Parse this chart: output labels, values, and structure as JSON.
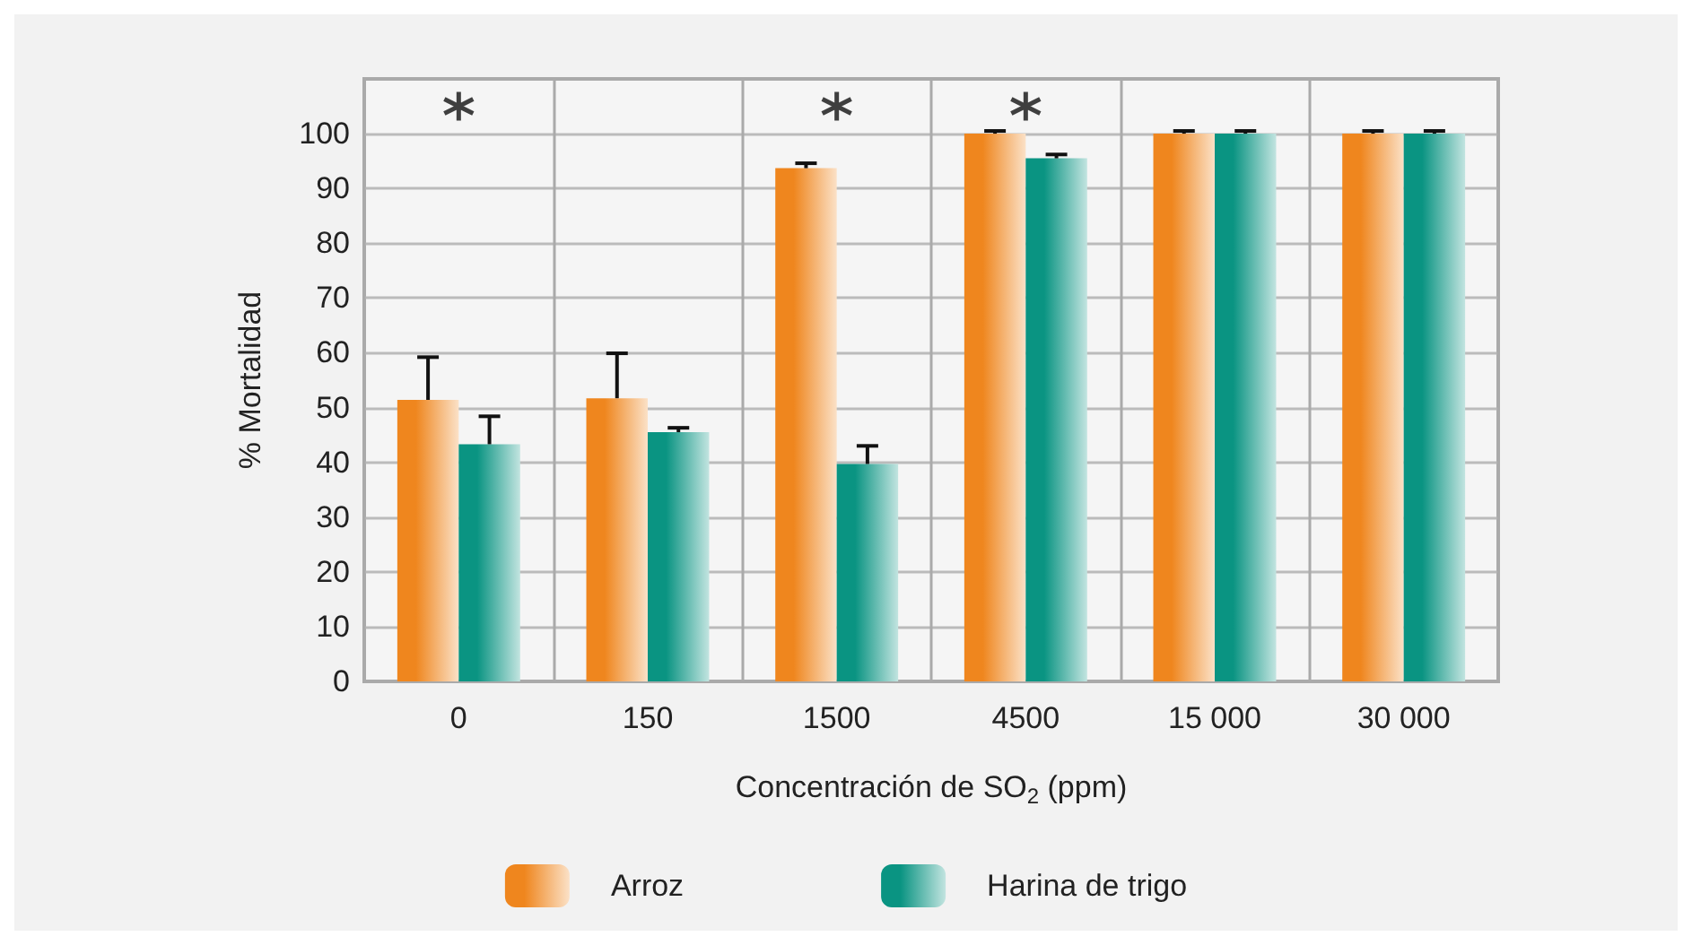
{
  "chart_data": {
    "type": "bar",
    "xlabel": "Concentración de SO$_{2}$ (ppm)",
    "ylabel": "% Mortalidad",
    "categories": [
      "0",
      "150",
      "1500",
      "4500",
      "15 000",
      "30 000"
    ],
    "series": [
      {
        "name": "Arroz",
        "color": "#ef861e",
        "values": [
          51.4,
          51.7,
          93.7,
          100,
          100,
          100
        ],
        "errors": [
          7.8,
          8.2,
          0.9,
          0.5,
          0.5,
          0.5
        ]
      },
      {
        "name": "Harina de trigo",
        "color": "#0a9482",
        "values": [
          43.3,
          45.5,
          39.7,
          95.5,
          100,
          100
        ],
        "errors": [
          5.1,
          0.8,
          3.3,
          0.7,
          0.5,
          0.5
        ]
      },
      {
        "type": "scatter",
        "color": "#111111",
        "marker": "cross",
        "values": [
          105,
          null,
          105,
          105,
          null,
          null
        ]
      }
    ],
    "ylim": [
      0,
      110
    ],
    "yticks": [
      0,
      10,
      20,
      30,
      40,
      50,
      60,
      70,
      80,
      90,
      100
    ],
    "grid": true,
    "legend": "bottom"
  }
}
